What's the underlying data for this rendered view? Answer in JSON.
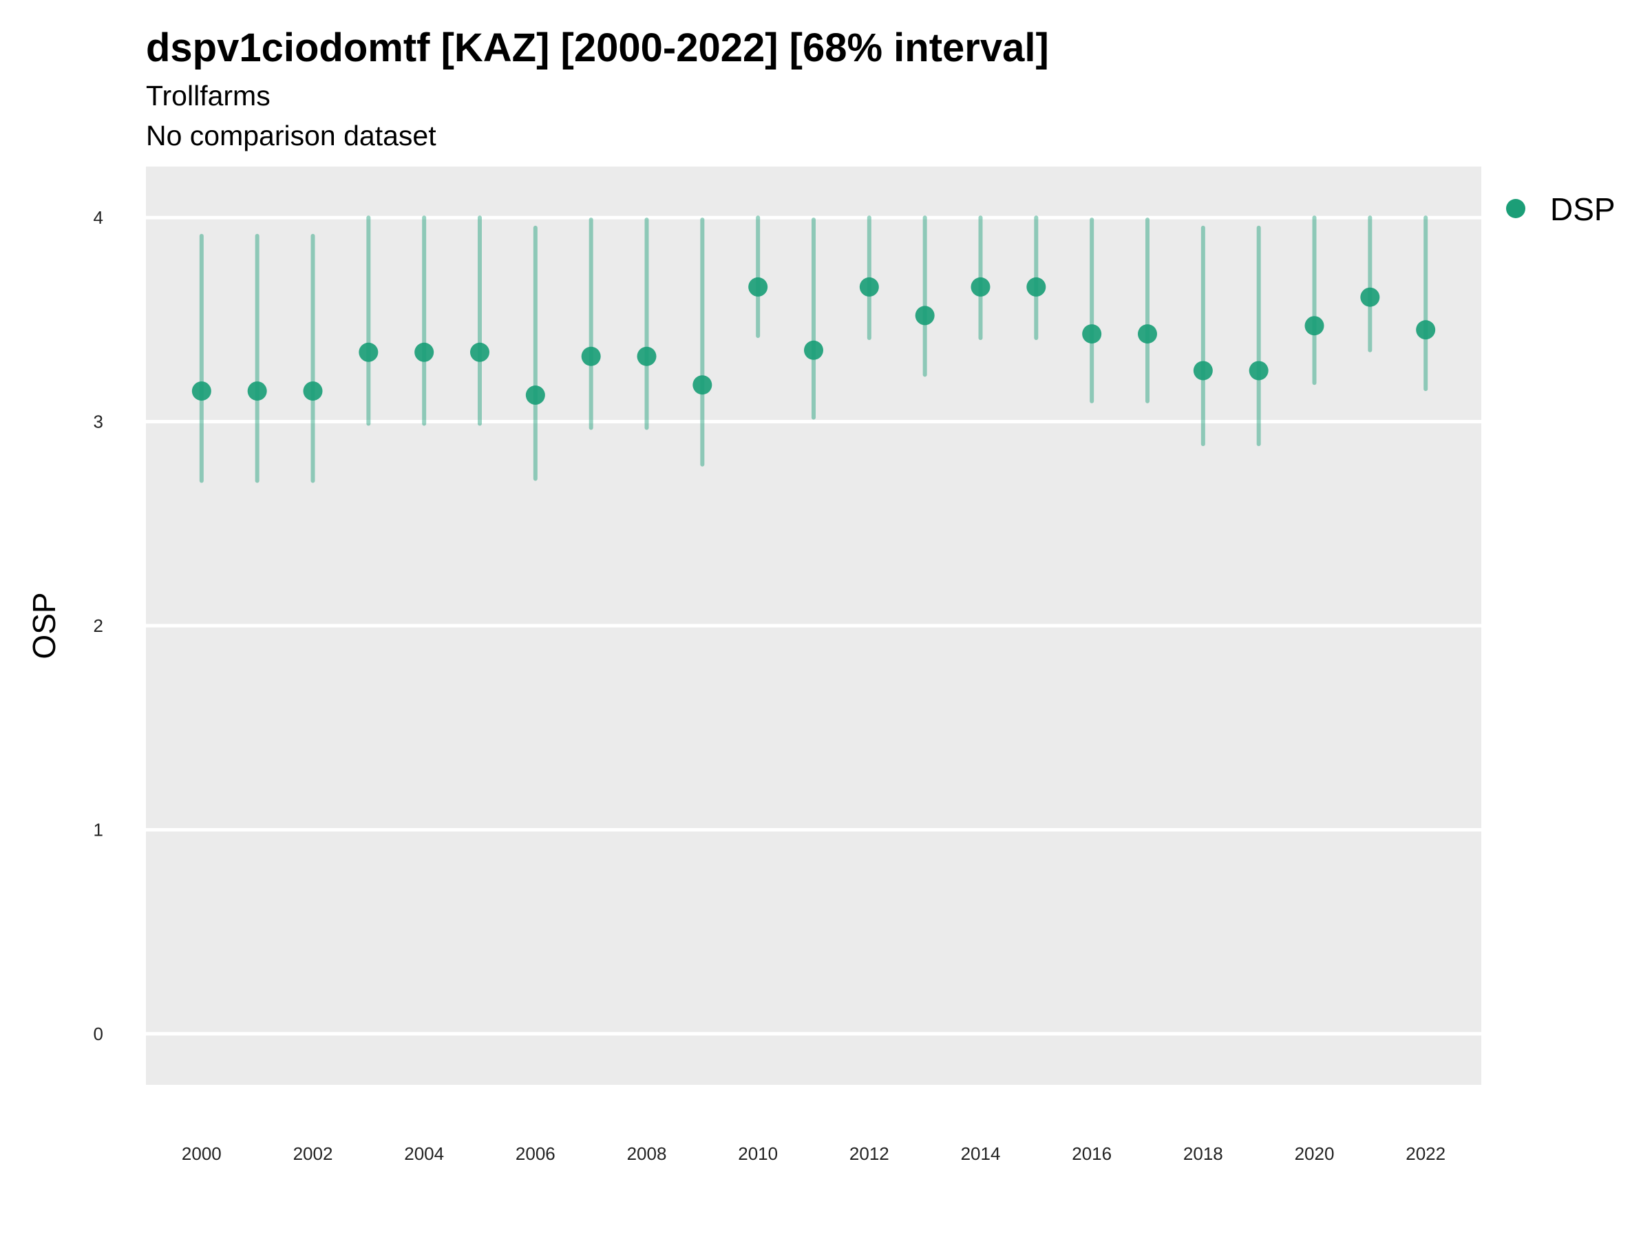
{
  "header": {
    "title": "dspv1ciodomtf [KAZ] [2000-2022] [68% interval]",
    "subtitle": "Trollfarms",
    "caption": "No comparison dataset"
  },
  "colors": {
    "point": "#1b9e77",
    "panel_background": "#ebebeb",
    "grid": "#ffffff"
  },
  "chart_data": {
    "type": "scatter",
    "title": "dspv1ciodomtf [KAZ] [2000-2022] [68% interval]",
    "subtitle": "Trollfarms",
    "caption": "No comparison dataset",
    "xlabel": "",
    "ylabel": "OSP",
    "xlim": [
      1999,
      2023
    ],
    "ylim": [
      -0.25,
      4.25
    ],
    "grid": true,
    "legend_position": "right",
    "x_ticks": [
      "2000",
      "2002",
      "2004",
      "2006",
      "2008",
      "2010",
      "2012",
      "2014",
      "2016",
      "2018",
      "2020",
      "2022"
    ],
    "y_ticks": [
      "0",
      "1",
      "2",
      "3",
      "4"
    ],
    "series": [
      {
        "name": "DSP",
        "x": [
          2000,
          2001,
          2002,
          2003,
          2004,
          2005,
          2006,
          2007,
          2008,
          2009,
          2010,
          2011,
          2012,
          2013,
          2014,
          2015,
          2016,
          2017,
          2018,
          2019,
          2020,
          2021,
          2022
        ],
        "y": [
          3.15,
          3.15,
          3.15,
          3.34,
          3.34,
          3.34,
          3.13,
          3.32,
          3.32,
          3.18,
          3.66,
          3.35,
          3.66,
          3.52,
          3.66,
          3.66,
          3.43,
          3.43,
          3.25,
          3.25,
          3.47,
          3.61,
          3.45
        ],
        "lower": [
          2.71,
          2.71,
          2.71,
          2.99,
          2.99,
          2.99,
          2.72,
          2.97,
          2.97,
          2.79,
          3.42,
          3.02,
          3.41,
          3.23,
          3.41,
          3.41,
          3.1,
          3.1,
          2.89,
          2.89,
          3.19,
          3.35,
          3.16
        ],
        "upper": [
          3.91,
          3.91,
          3.91,
          4.0,
          4.0,
          4.0,
          3.95,
          3.99,
          3.99,
          3.99,
          4.0,
          3.99,
          4.0,
          4.0,
          4.0,
          4.0,
          3.99,
          3.99,
          3.95,
          3.95,
          4.0,
          4.0,
          4.0
        ]
      }
    ]
  }
}
